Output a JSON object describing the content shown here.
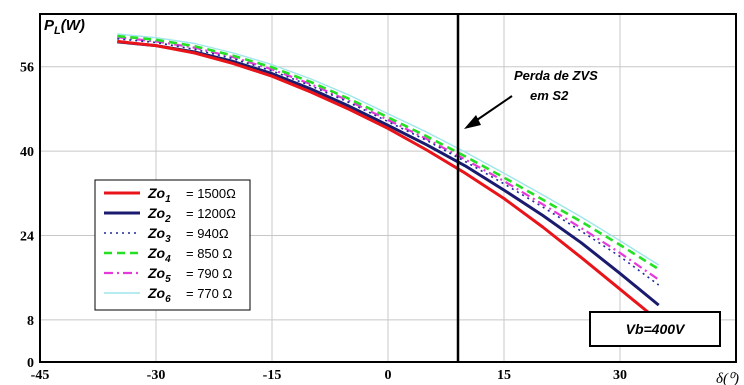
{
  "chart_data": {
    "type": "line",
    "ylabel": "P_L(W)",
    "xlabel": "δ(⁰)",
    "xlim": [
      -45,
      45
    ],
    "ylim": [
      0,
      66
    ],
    "xticks": [
      "-45",
      "-30",
      "-15",
      "0",
      "15",
      "30"
    ],
    "yticks": [
      "0",
      "8",
      "24",
      "40",
      "56"
    ],
    "grid": true,
    "series": [
      {
        "name": "Zo1",
        "value": "= 1500Ω",
        "color": "#e8141a",
        "dash": "",
        "width": 3,
        "x": [
          -35,
          -30,
          -25,
          -20,
          -15,
          -10,
          -5,
          0,
          5,
          10,
          15,
          20,
          25,
          30,
          35
        ],
        "y": [
          60.8,
          60.0,
          58.6,
          56.6,
          54.2,
          51.2,
          47.9,
          44.3,
          40.2,
          35.8,
          31.0,
          25.6,
          19.8,
          13.8,
          7.8
        ]
      },
      {
        "name": "Zo2",
        "value": "= 1200Ω",
        "color": "#1a1a6e",
        "dash": "",
        "width": 3,
        "x": [
          -35,
          -30,
          -25,
          -20,
          -15,
          -10,
          -5,
          0,
          5,
          10,
          15,
          20,
          25,
          30,
          35
        ],
        "y": [
          60.7,
          60.0,
          58.8,
          57.0,
          54.7,
          51.8,
          48.5,
          44.9,
          41.2,
          37.2,
          32.6,
          27.8,
          22.6,
          16.8,
          10.8
        ]
      },
      {
        "name": "Zo3",
        "value": "=  940Ω",
        "color": "#1c2a9c",
        "dash": "2,4",
        "width": 1.6,
        "x": [
          -35,
          -30,
          -25,
          -20,
          -15,
          -10,
          -5,
          0,
          5,
          10,
          15,
          20,
          25,
          30,
          35
        ],
        "y": [
          61.3,
          60.6,
          59.3,
          57.5,
          55.2,
          52.4,
          49.2,
          45.6,
          42.0,
          38.0,
          33.8,
          29.4,
          24.8,
          20.0,
          14.6
        ]
      },
      {
        "name": "Zo4",
        "value": "=  850 Ω",
        "color": "#22e022",
        "dash": "8,5",
        "width": 2.6,
        "x": [
          -35,
          -30,
          -25,
          -20,
          -15,
          -10,
          -5,
          0,
          5,
          10,
          15,
          20,
          25,
          30,
          35
        ],
        "y": [
          61.8,
          61.1,
          59.9,
          58.1,
          55.9,
          53.1,
          49.9,
          46.4,
          42.8,
          39.0,
          35.0,
          30.8,
          26.6,
          22.2,
          17.6
        ]
      },
      {
        "name": "Zo5",
        "value": "=  790 Ω",
        "color": "#e63ad8",
        "dash": "9,4,2,4",
        "width": 2.2,
        "x": [
          -35,
          -30,
          -25,
          -20,
          -15,
          -10,
          -5,
          0,
          5,
          10,
          15,
          20,
          25,
          30,
          35
        ],
        "y": [
          61.6,
          60.8,
          59.6,
          57.8,
          55.5,
          52.7,
          49.5,
          45.9,
          42.3,
          38.4,
          34.3,
          29.9,
          25.4,
          20.7,
          15.6
        ]
      },
      {
        "name": "Zo6",
        "value": "=  770 Ω",
        "color": "#9ee6ea",
        "dash": "",
        "width": 1.4,
        "x": [
          -35,
          -30,
          -25,
          -20,
          -15,
          -10,
          -5,
          0,
          5,
          10,
          15,
          20,
          25,
          30,
          35
        ],
        "y": [
          62.2,
          61.5,
          60.4,
          58.6,
          56.4,
          53.7,
          50.6,
          47.1,
          43.6,
          39.8,
          35.8,
          31.7,
          27.5,
          23.0,
          18.4
        ]
      }
    ],
    "annotations": {
      "zvs_line1": "Perda de ZVS",
      "zvs_line2": "em S2",
      "box": "Vb=400V"
    }
  }
}
